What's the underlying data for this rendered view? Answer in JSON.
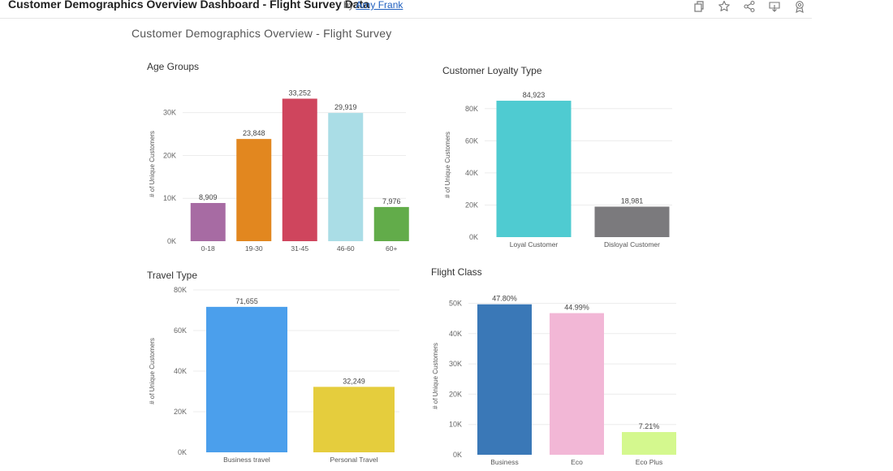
{
  "header": {
    "title": "Customer Demographics Overview Dashboard - Flight Survey Data",
    "by_label": "by",
    "author": "Amy Frank",
    "toolbar_icons": [
      "copy-icon",
      "star-icon",
      "share-icon",
      "download-icon",
      "badge-icon"
    ]
  },
  "dashboard_title": "Customer Demographics Overview - Flight Survey",
  "colors": {
    "title_bar_text": "#222222",
    "link": "#1f5fbf",
    "gridline": "#ececec"
  },
  "chart_data": [
    {
      "id": "age",
      "type": "bar",
      "title": "Age Groups",
      "ylabel": "# of Unique Customers",
      "ylim": [
        0,
        36000
      ],
      "yticks": [
        0,
        10000,
        20000,
        30000
      ],
      "ytick_labels": [
        "0K",
        "10K",
        "20K",
        "30K"
      ],
      "categories": [
        "0-18",
        "19-30",
        "31-45",
        "46-60",
        "60+"
      ],
      "values": [
        8909,
        23848,
        33252,
        29919,
        7976
      ],
      "value_labels": [
        "8,909",
        "23,848",
        "33,252",
        "29,919",
        "7,976"
      ],
      "colors": [
        "#a76ba3",
        "#e2871f",
        "#cf455d",
        "#aadde6",
        "#62ac4a"
      ]
    },
    {
      "id": "loyalty",
      "type": "bar",
      "title": "Customer Loyalty Type",
      "ylabel": "# of Unique Customers",
      "ylim": [
        0,
        90000
      ],
      "yticks": [
        0,
        20000,
        40000,
        60000,
        80000
      ],
      "ytick_labels": [
        "0K",
        "20K",
        "40K",
        "60K",
        "80K"
      ],
      "categories": [
        "Loyal Customer",
        "Disloyal Customer"
      ],
      "values": [
        84923,
        18981
      ],
      "value_labels": [
        "84,923",
        "18,981"
      ],
      "colors": [
        "#4fcbd1",
        "#7b7a7d"
      ]
    },
    {
      "id": "travel",
      "type": "bar",
      "title": "Travel Type",
      "ylabel": "# of Unique Customers",
      "ylim": [
        0,
        80000
      ],
      "yticks": [
        0,
        20000,
        40000,
        60000,
        80000
      ],
      "ytick_labels": [
        "0K",
        "20K",
        "40K",
        "60K",
        "80K"
      ],
      "categories": [
        "Business travel",
        "Personal Travel"
      ],
      "values": [
        71655,
        32249
      ],
      "value_labels": [
        "71,655",
        "32,249"
      ],
      "colors": [
        "#4b9fec",
        "#e5cd3d"
      ]
    },
    {
      "id": "class",
      "type": "bar",
      "title": "Flight Class",
      "ylabel": "# of Unique Customers",
      "ylim": [
        0,
        52000
      ],
      "yticks": [
        0,
        10000,
        20000,
        30000,
        40000,
        50000
      ],
      "ytick_labels": [
        "0K",
        "10K",
        "20K",
        "30K",
        "40K",
        "50K"
      ],
      "categories": [
        "Business",
        "Eco",
        "Eco Plus"
      ],
      "values": [
        49665,
        46745,
        7494
      ],
      "value_labels": [
        "47.80%",
        "44.99%",
        "7.21%"
      ],
      "colors": [
        "#3a78b7",
        "#f2b7d6",
        "#d4f88e"
      ]
    }
  ]
}
